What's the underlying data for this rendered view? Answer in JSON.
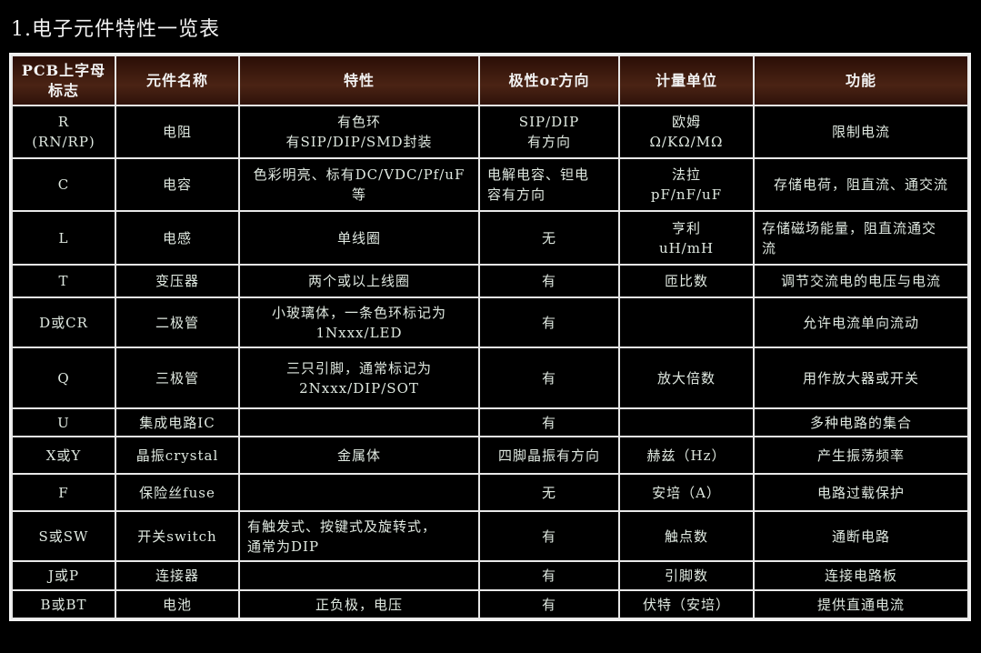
{
  "title": "1.电子元件特性一览表",
  "table": {
    "headers": [
      "PCB上字母\n标志",
      "元件名称",
      "特性",
      "极性or方向",
      "计量单位",
      "功能"
    ],
    "rows": [
      [
        "R\n(RN/RP)",
        "电阻",
        "有色环\n有SIP/DIP/SMD封装",
        "SIP/DIP\n有方向",
        "欧姆\nΩ/KΩ/MΩ",
        "限制电流"
      ],
      [
        "C",
        "电容",
        "色彩明亮、标有DC/VDC/Pf/uF\n等",
        "电解电容、钽电\n容有方向",
        "法拉\npF/nF/uF",
        "存储电荷，阻直流、通交流"
      ],
      [
        "L",
        "电感",
        "单线圈",
        "无",
        "亨利\nuH/mH",
        "存储磁场能量，阻直流通交\n流"
      ],
      [
        "T",
        "变压器",
        "两个或以上线圈",
        "有",
        "匝比数",
        "调节交流电的电压与电流"
      ],
      [
        "D或CR",
        "二极管",
        "小玻璃体，一条色环标记为\n1Nxxx/LED",
        "有",
        "",
        "允许电流单向流动"
      ],
      [
        "Q",
        "三极管",
        "三只引脚，通常标记为\n2Nxxx/DIP/SOT",
        "有",
        "放大倍数",
        "用作放大器或开关"
      ],
      [
        "U",
        "集成电路IC",
        "",
        "有",
        "",
        "多种电路的集合"
      ],
      [
        "X或Y",
        "晶振crystal",
        "金属体",
        "四脚晶振有方向",
        "赫兹（Hz）",
        "产生振荡频率"
      ],
      [
        "F",
        "保险丝fuse",
        "",
        "无",
        "安培（A）",
        "电路过载保护"
      ],
      [
        "S或SW",
        "开关switch",
        "有触发式、按键式及旋转式，\n通常为DIP",
        "有",
        "触点数",
        "通断电路"
      ],
      [
        "J或P",
        "连接器",
        "",
        "有",
        "引脚数",
        "连接电路板"
      ],
      [
        "B或BT",
        "电池",
        "正负极，电压",
        "有",
        "伏特（安培）",
        "提供直通电流"
      ]
    ]
  }
}
